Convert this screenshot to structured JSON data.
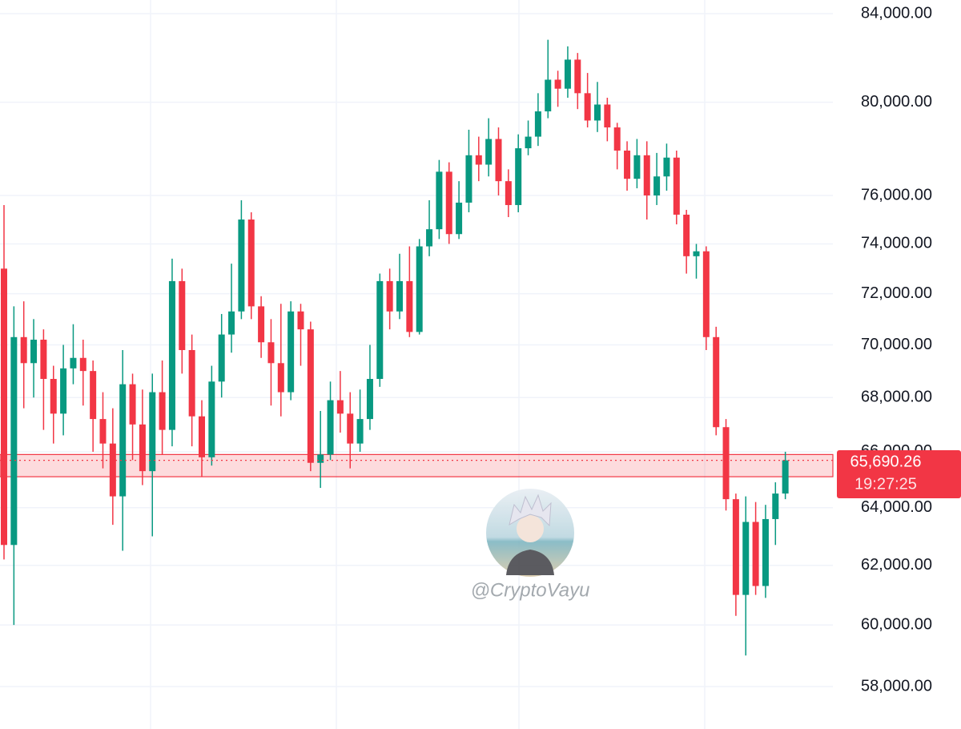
{
  "chart_data": {
    "type": "candlestick",
    "log_scale": true,
    "grid": true,
    "up_color": "#089981",
    "down_color": "#f23645",
    "ylim": [
      56660,
      84632
    ],
    "yticks": [
      {
        "value": 58000,
        "label": "58,000.00"
      },
      {
        "value": 60000,
        "label": "60,000.00"
      },
      {
        "value": 62000,
        "label": "62,000.00"
      },
      {
        "value": 64000,
        "label": "64,000.00"
      },
      {
        "value": 66000,
        "label": "66,000.00"
      },
      {
        "value": 68000,
        "label": "68,000.00"
      },
      {
        "value": 70000,
        "label": "70,000.00"
      },
      {
        "value": 72000,
        "label": "72,000.00"
      },
      {
        "value": 74000,
        "label": "74,000.00"
      },
      {
        "value": 76000,
        "label": "76,000.00"
      },
      {
        "value": 80000,
        "label": "80,000.00"
      },
      {
        "value": 84000,
        "label": "84,000.00"
      }
    ],
    "open": [
      73000,
      62700,
      70300,
      69300,
      70200,
      68700,
      67400,
      69100,
      69500,
      69000,
      67200,
      66300,
      64400,
      68500,
      67000,
      65300,
      68200,
      66800,
      72500,
      69800,
      67300,
      65800,
      68600,
      70400,
      71300,
      75000,
      71500,
      70100,
      69300,
      68200,
      71300,
      70600,
      65600,
      65900,
      67900,
      67400,
      66300,
      67200,
      68700,
      72500,
      71300,
      72500,
      70500,
      73900,
      74600,
      77000,
      74400,
      75700,
      77700,
      77300,
      78400,
      76600,
      75600,
      78000,
      78500,
      79600,
      81000,
      80600,
      81900,
      80400,
      79200,
      79900,
      78900,
      77900,
      76700,
      77700,
      76000,
      76800,
      77600,
      75200,
      73500,
      73700,
      70300,
      66900,
      64300,
      61000,
      63500,
      61300,
      63600,
      64500
    ],
    "high": [
      75600,
      71500,
      71700,
      71000,
      70600,
      69200,
      70000,
      70800,
      70200,
      69400,
      68200,
      67600,
      69800,
      68900,
      68300,
      68900,
      69400,
      73400,
      73000,
      70400,
      67900,
      69200,
      71200,
      73200,
      75800,
      75300,
      71900,
      71000,
      71600,
      71700,
      71600,
      70900,
      67500,
      68600,
      69000,
      68200,
      68300,
      70000,
      72800,
      73000,
      73600,
      73900,
      74200,
      75800,
      77500,
      77400,
      76600,
      78800,
      78500,
      79300,
      78900,
      77100,
      78600,
      79200,
      80400,
      82800,
      81400,
      82500,
      82200,
      81300,
      80900,
      80200,
      79100,
      78300,
      78400,
      78300,
      77800,
      78200,
      77900,
      75400,
      74000,
      73900,
      70700,
      67200,
      64500,
      64400,
      64200,
      64100,
      64900,
      66000
    ],
    "low": [
      62200,
      60000,
      67600,
      68000,
      66800,
      66300,
      66600,
      68500,
      67700,
      66000,
      65400,
      63400,
      62500,
      65700,
      64800,
      63000,
      65900,
      66200,
      68900,
      66200,
      65100,
      65500,
      68000,
      69700,
      71000,
      71000,
      69500,
      67700,
      67300,
      67900,
      69200,
      65300,
      64700,
      65700,
      66700,
      65400,
      66000,
      66800,
      68400,
      70600,
      71000,
      70300,
      70400,
      73500,
      74200,
      74000,
      74200,
      75300,
      76600,
      76800,
      76000,
      75100,
      75300,
      77700,
      78100,
      79300,
      79800,
      80200,
      79700,
      78900,
      78700,
      78300,
      77100,
      76200,
      76300,
      75000,
      75600,
      76200,
      74800,
      72800,
      72600,
      69800,
      66600,
      63900,
      60300,
      59000,
      61000,
      60900,
      62700,
      64300
    ],
    "close": [
      62700,
      70300,
      69300,
      70200,
      68700,
      67400,
      69100,
      69500,
      69000,
      67200,
      66300,
      64400,
      68500,
      67000,
      65300,
      68200,
      66800,
      72500,
      69800,
      67300,
      65800,
      68600,
      70400,
      71300,
      75000,
      71500,
      70100,
      69300,
      68200,
      71300,
      70600,
      65600,
      65900,
      67900,
      67400,
      66300,
      67200,
      68700,
      72500,
      71300,
      72500,
      70500,
      73900,
      74600,
      77000,
      74400,
      75700,
      77700,
      77300,
      78400,
      76600,
      75600,
      78000,
      78500,
      79600,
      81000,
      80600,
      81900,
      80400,
      79200,
      79900,
      78900,
      77900,
      76700,
      77700,
      76000,
      76800,
      77600,
      75200,
      73500,
      73700,
      70300,
      66900,
      64300,
      61000,
      63500,
      61300,
      63600,
      64500,
      65690.26
    ],
    "zone": [
      65100,
      65900
    ],
    "last_price": {
      "value": 65690.26,
      "label": "65,690.26"
    },
    "countdown": "19:27:25",
    "watermark": "@CryptoVayu"
  }
}
